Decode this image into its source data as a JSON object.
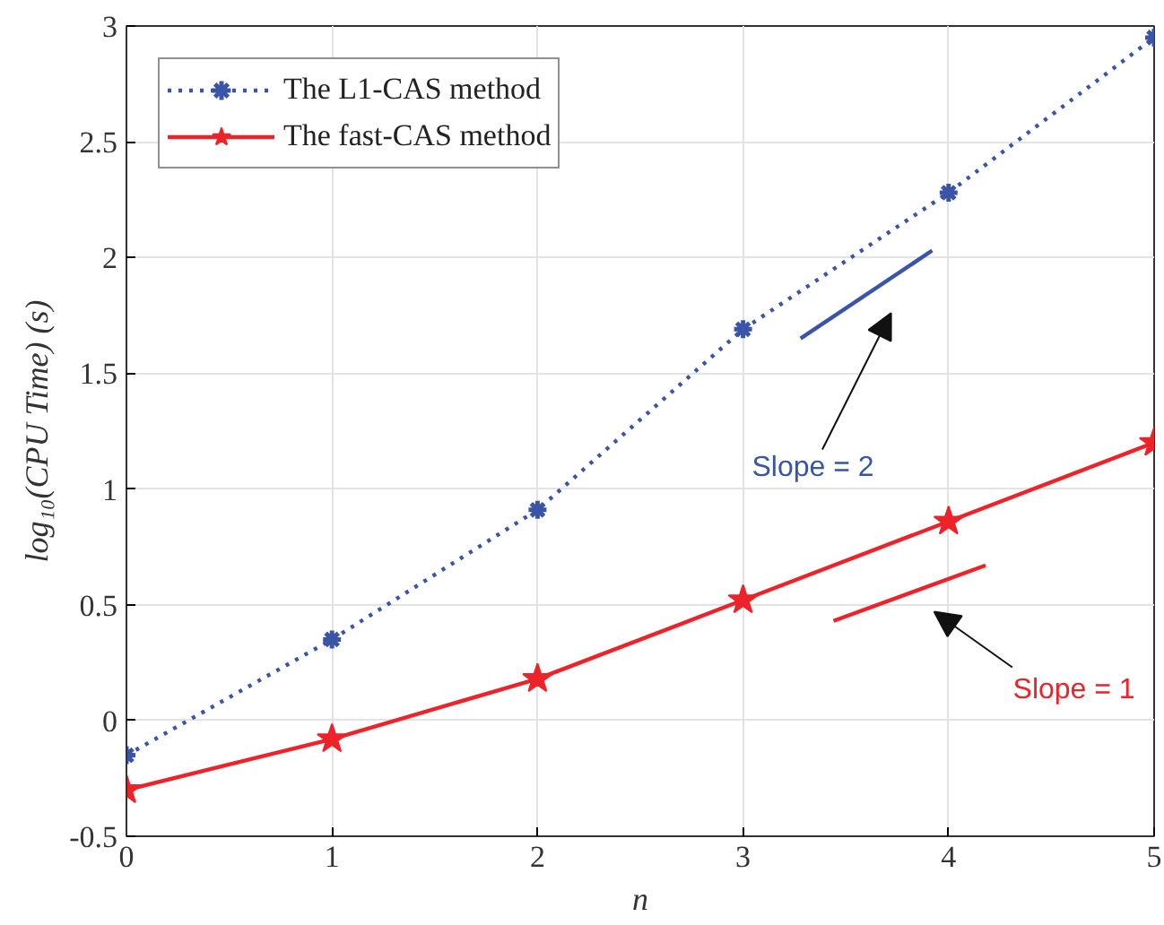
{
  "chart_data": {
    "type": "line",
    "xlabel": "n",
    "ylabel": "log₁₀(CPU Time) (s)",
    "x": [
      0,
      1,
      2,
      3,
      4,
      5
    ],
    "series": [
      {
        "name": "The L1-CAS method",
        "color": "#3a55a8",
        "values": [
          -0.15,
          0.35,
          0.91,
          1.69,
          2.28,
          2.95
        ],
        "marker": "cross",
        "line_style": "dotted"
      },
      {
        "name": "The fast-CAS method",
        "color": "#ee2229",
        "values": [
          -0.3,
          -0.08,
          0.18,
          0.52,
          0.86,
          1.2
        ],
        "marker": "star",
        "line_style": "solid"
      },
      {
        "color": "#3a55a8",
        "x": [
          3.28,
          3.92
        ],
        "values": [
          1.65,
          2.03
        ],
        "line_style": "solid"
      },
      {
        "color": "#ee2229",
        "x": [
          3.44,
          4.18
        ],
        "values": [
          0.43,
          0.67
        ],
        "line_style": "solid"
      }
    ],
    "annotations": [
      "Slope = 2",
      "Slope = 1"
    ],
    "xlim": [
      0,
      5
    ],
    "ylim": [
      -0.5,
      3
    ],
    "xticks": [
      0,
      1,
      2,
      3,
      4,
      5
    ],
    "yticks": [
      -0.5,
      0,
      0.5,
      1,
      1.5,
      2,
      2.5,
      3
    ],
    "grid": true,
    "legend": "top left"
  }
}
